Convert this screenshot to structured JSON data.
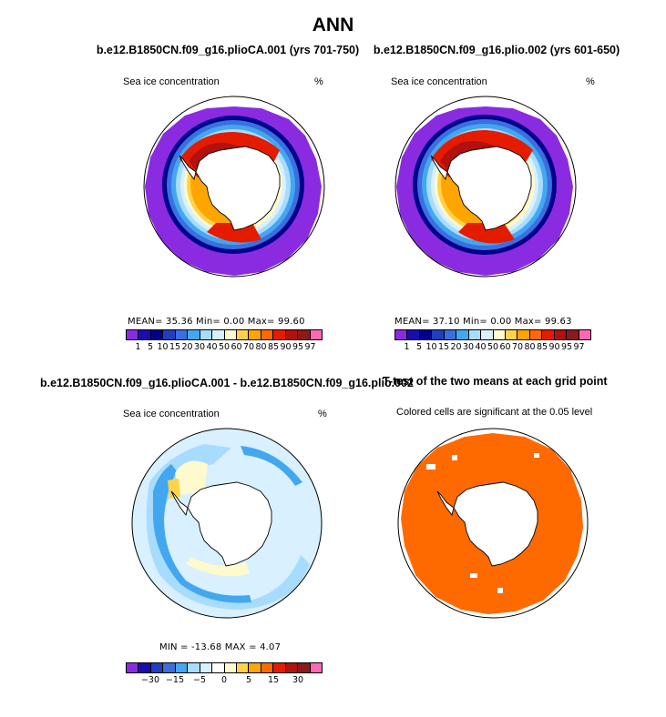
{
  "title": "ANN",
  "panels": {
    "top_left": {
      "title": "b.e12.B1850CN.f09_g16.plioCA.001 (yrs 701-750)",
      "variable": "Sea ice concentration",
      "units": "%",
      "stats": "MEAN=  35.36  Min=   0.00  Max=  99.60"
    },
    "top_right": {
      "title": "b.e12.B1850CN.f09_g16.plio.002 (yrs 601-650)",
      "variable": "Sea ice concentration",
      "units": "%",
      "stats": "MEAN=  37.10  Min=   0.00  Max=  99.63"
    },
    "bottom_left": {
      "title": "b.e12.B1850CN.f09_g16.plioCA.001 - b.e12.B1850CN.f09_g16.plio.002",
      "variable": "Sea ice concentration",
      "units": "%",
      "stats": "MIN = -13.68  MAX =   4.07"
    },
    "bottom_right": {
      "title": "T-test of the two means at each grid point",
      "subtitle": "Colored cells are significant at the 0.05 level"
    }
  },
  "colorbar_top": {
    "labels": [
      "1",
      "5",
      "10",
      "15",
      "20",
      "30",
      "40",
      "50",
      "60",
      "70",
      "80",
      "85",
      "90",
      "95",
      "97"
    ],
    "colors": [
      "#8a2be2",
      "#1a0dab",
      "#00008b",
      "#1f3fbf",
      "#3a6fe0",
      "#43a7f0",
      "#a8dcff",
      "#d8f0ff",
      "#fffacd",
      "#ffd24a",
      "#ffa500",
      "#ff6a00",
      "#e51b00",
      "#b31010",
      "#8b1a1a",
      "#ff69b4"
    ]
  },
  "colorbar_diff": {
    "labels": [
      "−30",
      "−15",
      "−5",
      "0",
      "5",
      "15",
      "30"
    ],
    "colors": [
      "#8a2be2",
      "#1a0dab",
      "#1f3fbf",
      "#3a6fe0",
      "#43a7f0",
      "#a8dcff",
      "#d8f0ff",
      "#ffffff",
      "#fffacd",
      "#ffd24a",
      "#ffa500",
      "#ff6a00",
      "#e51b00",
      "#b31010",
      "#8b1a1a",
      "#ff69b4"
    ]
  },
  "map_colors": {
    "ocean": "#ffffff",
    "land": "#ffffff",
    "significant": "#ff6a00",
    "diff_background": "#d8f0ff"
  }
}
